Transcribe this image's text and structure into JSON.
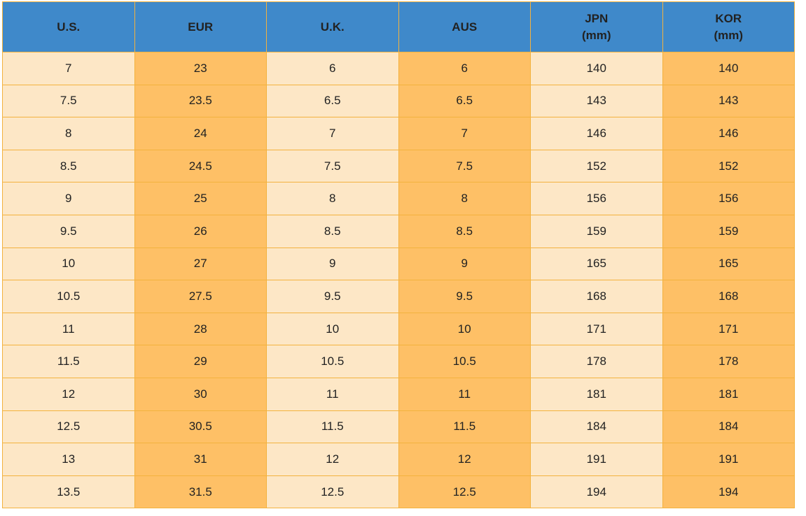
{
  "table": {
    "header": [
      "U.S.",
      "EUR",
      "U.K.",
      "AUS",
      "JPN\n(mm)",
      "KOR\n(mm)"
    ],
    "rows": [
      [
        "7",
        "23",
        "6",
        "6",
        "140",
        "140"
      ],
      [
        "7.5",
        "23.5",
        "6.5",
        "6.5",
        "143",
        "143"
      ],
      [
        "8",
        "24",
        "7",
        "7",
        "146",
        "146"
      ],
      [
        "8.5",
        "24.5",
        "7.5",
        "7.5",
        "152",
        "152"
      ],
      [
        "9",
        "25",
        "8",
        "8",
        "156",
        "156"
      ],
      [
        "9.5",
        "26",
        "8.5",
        "8.5",
        "159",
        "159"
      ],
      [
        "10",
        "27",
        "9",
        "9",
        "165",
        "165"
      ],
      [
        "10.5",
        "27.5",
        "9.5",
        "9.5",
        "168",
        "168"
      ],
      [
        "11",
        "28",
        "10",
        "10",
        "171",
        "171"
      ],
      [
        "11.5",
        "29",
        "10.5",
        "10.5",
        "178",
        "178"
      ],
      [
        "12",
        "30",
        "11",
        "11",
        "181",
        "181"
      ],
      [
        "12.5",
        "30.5",
        "11.5",
        "11.5",
        "184",
        "184"
      ],
      [
        "13",
        "31",
        "12",
        "12",
        "191",
        "191"
      ],
      [
        "13.5",
        "31.5",
        "12.5",
        "12.5",
        "194",
        "194"
      ]
    ]
  }
}
